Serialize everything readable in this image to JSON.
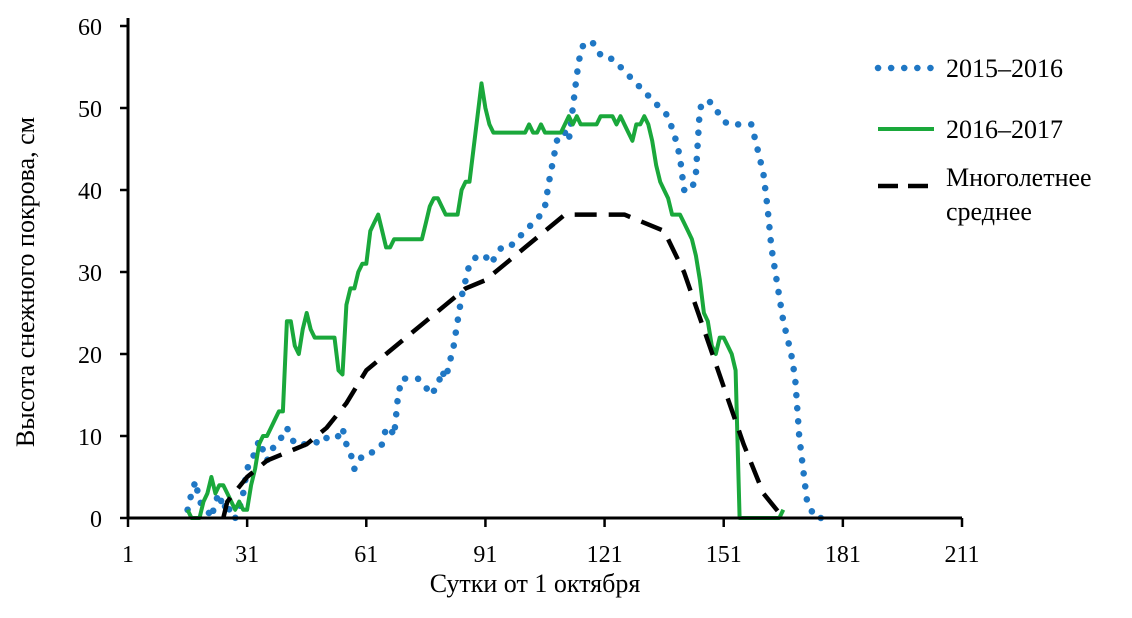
{
  "chart_data": {
    "type": "line",
    "xlabel": "Сутки от 1 октября",
    "ylabel": "Высота снежного покрова, см",
    "xlim": [
      1,
      211
    ],
    "ylim": [
      0,
      60
    ],
    "x_ticks": [
      1,
      31,
      61,
      91,
      121,
      151,
      181,
      211
    ],
    "y_ticks": [
      0,
      10,
      20,
      30,
      40,
      50,
      60
    ],
    "grid": false,
    "legend_position": "right",
    "series": [
      {
        "name": "2015–2016",
        "style": "dotted",
        "color": "#1f77c4",
        "points": [
          [
            16,
            1
          ],
          [
            17,
            3
          ],
          [
            18,
            4.5
          ],
          [
            19,
            2
          ],
          [
            21,
            1
          ],
          [
            22,
            0
          ],
          [
            23,
            2
          ],
          [
            24,
            3
          ],
          [
            25,
            1
          ],
          [
            26,
            2
          ],
          [
            27,
            0
          ],
          [
            28,
            0
          ],
          [
            29,
            1
          ],
          [
            30,
            3
          ],
          [
            31,
            6
          ],
          [
            33,
            8
          ],
          [
            34,
            9.5
          ],
          [
            36,
            7
          ],
          [
            38,
            9
          ],
          [
            40,
            10
          ],
          [
            41,
            11
          ],
          [
            43,
            9
          ],
          [
            46,
            9
          ],
          [
            48,
            9
          ],
          [
            50,
            10
          ],
          [
            52,
            9.5
          ],
          [
            54,
            10
          ],
          [
            55,
            11
          ],
          [
            56,
            9
          ],
          [
            57,
            8
          ],
          [
            58,
            6
          ],
          [
            59,
            7
          ],
          [
            61,
            8
          ],
          [
            63,
            8
          ],
          [
            65,
            9
          ],
          [
            66,
            11
          ],
          [
            67,
            11
          ],
          [
            68,
            10
          ],
          [
            69,
            15
          ],
          [
            70,
            17
          ],
          [
            72,
            17
          ],
          [
            74,
            17
          ],
          [
            76,
            16
          ],
          [
            77,
            15
          ],
          [
            79,
            16
          ],
          [
            80,
            18
          ],
          [
            81,
            17
          ],
          [
            83,
            21
          ],
          [
            84,
            24
          ],
          [
            85,
            27
          ],
          [
            86,
            29
          ],
          [
            87,
            31
          ],
          [
            89,
            32
          ],
          [
            91,
            32
          ],
          [
            92,
            31
          ],
          [
            94,
            32
          ],
          [
            95,
            33
          ],
          [
            97,
            33
          ],
          [
            99,
            34
          ],
          [
            101,
            35
          ],
          [
            103,
            36
          ],
          [
            105,
            37
          ],
          [
            106,
            38
          ],
          [
            107,
            41
          ],
          [
            109,
            46
          ],
          [
            110,
            47
          ],
          [
            111,
            47
          ],
          [
            112,
            46
          ],
          [
            114,
            54
          ],
          [
            115,
            57
          ],
          [
            116,
            58
          ],
          [
            118,
            58
          ],
          [
            119,
            57
          ],
          [
            121,
            56
          ],
          [
            123,
            56
          ],
          [
            125,
            55
          ],
          [
            127,
            54
          ],
          [
            129,
            53
          ],
          [
            131,
            52
          ],
          [
            133,
            51
          ],
          [
            135,
            50
          ],
          [
            137,
            49
          ],
          [
            139,
            46
          ],
          [
            140,
            44
          ],
          [
            141,
            40
          ],
          [
            142,
            40
          ],
          [
            143,
            40
          ],
          [
            144,
            42
          ],
          [
            145,
            50
          ],
          [
            147,
            51
          ],
          [
            149,
            50
          ],
          [
            150,
            49
          ],
          [
            152,
            48
          ],
          [
            154,
            48
          ],
          [
            156,
            48
          ],
          [
            158,
            48
          ],
          [
            159,
            46
          ],
          [
            160,
            44
          ],
          [
            161,
            42
          ],
          [
            162,
            38
          ],
          [
            163,
            33
          ],
          [
            164,
            30
          ],
          [
            165,
            27
          ],
          [
            166,
            24
          ],
          [
            167,
            22
          ],
          [
            168,
            20
          ],
          [
            169,
            17
          ],
          [
            170,
            10
          ],
          [
            171,
            6
          ],
          [
            172,
            2
          ],
          [
            173,
            1
          ],
          [
            174,
            0
          ],
          [
            176,
            0
          ]
        ]
      },
      {
        "name": "2016–2017",
        "style": "solid",
        "color": "#1aa83b",
        "points": [
          [
            16,
            1
          ],
          [
            17,
            0
          ],
          [
            19,
            0
          ],
          [
            20,
            2
          ],
          [
            21,
            3
          ],
          [
            22,
            5
          ],
          [
            23,
            3
          ],
          [
            24,
            4
          ],
          [
            25,
            4
          ],
          [
            26,
            3
          ],
          [
            27,
            2
          ],
          [
            28,
            1
          ],
          [
            29,
            2
          ],
          [
            30,
            1
          ],
          [
            31,
            1
          ],
          [
            32,
            4
          ],
          [
            33,
            6
          ],
          [
            34,
            9
          ],
          [
            35,
            10
          ],
          [
            36,
            10
          ],
          [
            37,
            11
          ],
          [
            38,
            12
          ],
          [
            39,
            13
          ],
          [
            40,
            13
          ],
          [
            41,
            24
          ],
          [
            42,
            24
          ],
          [
            43,
            21
          ],
          [
            44,
            20
          ],
          [
            45,
            23
          ],
          [
            46,
            25
          ],
          [
            47,
            23
          ],
          [
            48,
            22
          ],
          [
            49,
            22
          ],
          [
            50,
            22
          ],
          [
            51,
            22
          ],
          [
            52,
            22
          ],
          [
            53,
            22
          ],
          [
            54,
            18
          ],
          [
            55,
            17.5
          ],
          [
            56,
            26
          ],
          [
            57,
            28
          ],
          [
            58,
            28
          ],
          [
            59,
            30
          ],
          [
            60,
            31
          ],
          [
            61,
            31
          ],
          [
            62,
            35
          ],
          [
            63,
            36
          ],
          [
            64,
            37
          ],
          [
            65,
            35
          ],
          [
            66,
            33
          ],
          [
            67,
            33
          ],
          [
            68,
            34
          ],
          [
            69,
            34
          ],
          [
            70,
            34
          ],
          [
            71,
            34
          ],
          [
            72,
            34
          ],
          [
            73,
            34
          ],
          [
            74,
            34
          ],
          [
            75,
            34
          ],
          [
            76,
            36
          ],
          [
            77,
            38
          ],
          [
            78,
            39
          ],
          [
            79,
            39
          ],
          [
            80,
            38
          ],
          [
            81,
            37
          ],
          [
            82,
            37
          ],
          [
            83,
            37
          ],
          [
            84,
            37
          ],
          [
            85,
            40
          ],
          [
            86,
            41
          ],
          [
            87,
            41
          ],
          [
            88,
            45
          ],
          [
            89,
            49
          ],
          [
            90,
            53
          ],
          [
            91,
            50
          ],
          [
            92,
            48
          ],
          [
            93,
            47
          ],
          [
            94,
            47
          ],
          [
            95,
            47
          ],
          [
            96,
            47
          ],
          [
            97,
            47
          ],
          [
            98,
            47
          ],
          [
            99,
            47
          ],
          [
            100,
            47
          ],
          [
            101,
            47
          ],
          [
            102,
            48
          ],
          [
            103,
            47
          ],
          [
            104,
            47
          ],
          [
            105,
            48
          ],
          [
            106,
            47
          ],
          [
            107,
            47
          ],
          [
            108,
            47
          ],
          [
            109,
            47
          ],
          [
            110,
            47
          ],
          [
            111,
            48
          ],
          [
            112,
            49
          ],
          [
            113,
            48
          ],
          [
            114,
            49
          ],
          [
            115,
            48
          ],
          [
            116,
            48
          ],
          [
            117,
            48
          ],
          [
            118,
            48
          ],
          [
            119,
            48
          ],
          [
            120,
            49
          ],
          [
            121,
            49
          ],
          [
            122,
            49
          ],
          [
            123,
            49
          ],
          [
            124,
            48
          ],
          [
            125,
            49
          ],
          [
            126,
            48
          ],
          [
            127,
            47
          ],
          [
            128,
            46
          ],
          [
            129,
            48
          ],
          [
            130,
            48
          ],
          [
            131,
            49
          ],
          [
            132,
            48
          ],
          [
            133,
            46
          ],
          [
            134,
            43
          ],
          [
            135,
            41
          ],
          [
            136,
            40
          ],
          [
            137,
            39
          ],
          [
            138,
            37
          ],
          [
            139,
            37
          ],
          [
            140,
            37
          ],
          [
            141,
            36
          ],
          [
            142,
            35
          ],
          [
            143,
            34
          ],
          [
            144,
            32
          ],
          [
            145,
            29
          ],
          [
            146,
            25
          ],
          [
            147,
            24
          ],
          [
            148,
            21
          ],
          [
            149,
            20
          ],
          [
            150,
            22
          ],
          [
            151,
            22
          ],
          [
            152,
            21
          ],
          [
            153,
            20
          ],
          [
            154,
            18
          ],
          [
            155,
            0
          ],
          [
            156,
            0
          ],
          [
            158,
            0
          ],
          [
            160,
            0
          ],
          [
            161,
            0
          ],
          [
            162,
            0
          ],
          [
            163,
            0
          ],
          [
            164,
            0
          ],
          [
            165,
            0
          ],
          [
            166,
            1
          ]
        ]
      },
      {
        "name": "Многолетнее среднее",
        "style": "dashed",
        "color": "#000000",
        "points": [
          [
            25,
            0
          ],
          [
            26,
            2
          ],
          [
            31,
            5
          ],
          [
            36,
            7
          ],
          [
            41,
            8
          ],
          [
            46,
            9
          ],
          [
            51,
            11
          ],
          [
            56,
            14
          ],
          [
            61,
            18
          ],
          [
            66,
            20
          ],
          [
            71,
            22
          ],
          [
            76,
            24
          ],
          [
            81,
            26
          ],
          [
            86,
            28
          ],
          [
            91,
            29
          ],
          [
            96,
            31
          ],
          [
            101,
            33
          ],
          [
            106,
            35
          ],
          [
            111,
            37
          ],
          [
            116,
            37
          ],
          [
            121,
            37
          ],
          [
            126,
            37
          ],
          [
            131,
            36
          ],
          [
            136,
            35
          ],
          [
            141,
            30
          ],
          [
            146,
            23
          ],
          [
            151,
            16
          ],
          [
            156,
            9
          ],
          [
            161,
            3
          ],
          [
            166,
            0
          ]
        ]
      }
    ]
  }
}
